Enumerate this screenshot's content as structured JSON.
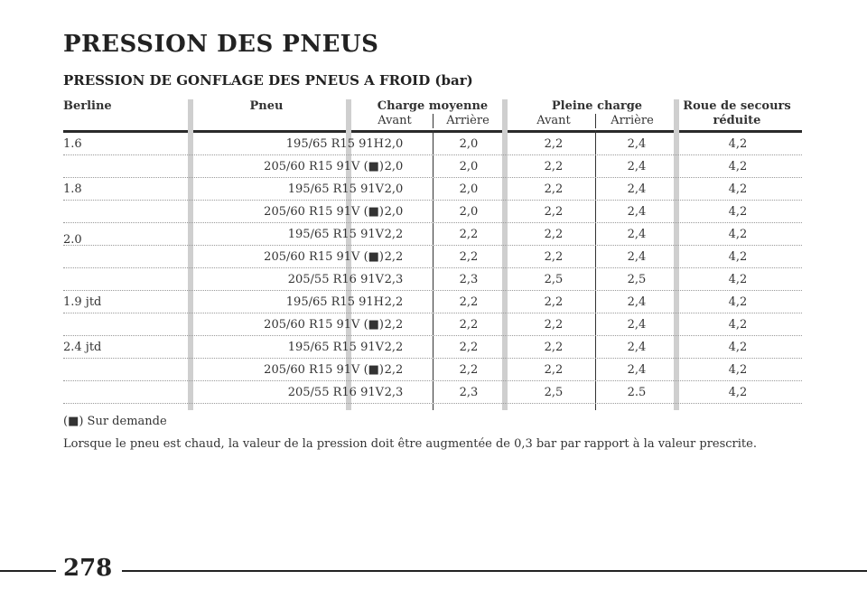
{
  "page": {
    "title": "PRESSION DES PNEUS",
    "subtitle": "PRESSION DE GONFLAGE DES PNEUS A FROID (bar)",
    "number": "278"
  },
  "table": {
    "headers": {
      "model": "Berline",
      "tire": "Pneu",
      "medium_load": "Charge moyenne",
      "full_load": "Pleine charge",
      "spare": "Roue de secours",
      "spare_sub": "réduite",
      "front": "Avant",
      "rear": "Arrière"
    },
    "rows": [
      {
        "model": "1.6",
        "tire": "195/65 R15 91H",
        "m_front": "2,0",
        "m_rear": "2,0",
        "f_front": "2,2",
        "f_rear": "2,4",
        "spare": "4,2"
      },
      {
        "model": "",
        "tire": "205/60 R15 91V (■)",
        "m_front": "2,0",
        "m_rear": "2,0",
        "f_front": "2,2",
        "f_rear": "2,4",
        "spare": "4,2"
      },
      {
        "model": "1.8",
        "tire": "195/65 R15 91V",
        "m_front": "2,0",
        "m_rear": "2,0",
        "f_front": "2,2",
        "f_rear": "2,4",
        "spare": "4,2"
      },
      {
        "model": "",
        "tire": "205/60 R15 91V (■)",
        "m_front": "2,0",
        "m_rear": "2,0",
        "f_front": "2,2",
        "f_rear": "2,4",
        "spare": "4,2"
      },
      {
        "model": "2.0",
        "tire": "195/65 R15 91V",
        "m_front": "2,2",
        "m_rear": "2,2",
        "f_front": "2,2",
        "f_rear": "2,4",
        "spare": "4,2"
      },
      {
        "model": "",
        "tire": "205/60 R15 91V (■)",
        "m_front": "2,2",
        "m_rear": "2,2",
        "f_front": "2,2",
        "f_rear": "2,4",
        "spare": "4,2"
      },
      {
        "model": "",
        "tire": "205/55 R16 91V",
        "m_front": "2,3",
        "m_rear": "2,3",
        "f_front": "2,5",
        "f_rear": "2,5",
        "spare": "4,2"
      },
      {
        "model": "1.9 jtd",
        "tire": "195/65 R15 91H",
        "m_front": "2,2",
        "m_rear": "2,2",
        "f_front": "2,2",
        "f_rear": "2,4",
        "spare": "4,2"
      },
      {
        "model": "",
        "tire": "205/60 R15 91V (■)",
        "m_front": "2,2",
        "m_rear": "2,2",
        "f_front": "2,2",
        "f_rear": "2,4",
        "spare": "4,2"
      },
      {
        "model": "2.4 jtd",
        "tire": "195/65 R15 91V",
        "m_front": "2,2",
        "m_rear": "2,2",
        "f_front": "2,2",
        "f_rear": "2,4",
        "spare": "4,2"
      },
      {
        "model": "",
        "tire": "205/60 R15 91V (■)",
        "m_front": "2,2",
        "m_rear": "2,2",
        "f_front": "2,2",
        "f_rear": "2,4",
        "spare": "4,2"
      },
      {
        "model": "",
        "tire": "205/55 R16 91V",
        "m_front": "2,3",
        "m_rear": "2,3",
        "f_front": "2,5",
        "f_rear": "2.5",
        "spare": "4,2"
      }
    ]
  },
  "notes": {
    "on_request": "(■) Sur demande",
    "hot_tire": "Lorsque le pneu est chaud, la valeur de la pression doit être augmentée de 0,3 bar par rapport à la valeur prescrite."
  }
}
